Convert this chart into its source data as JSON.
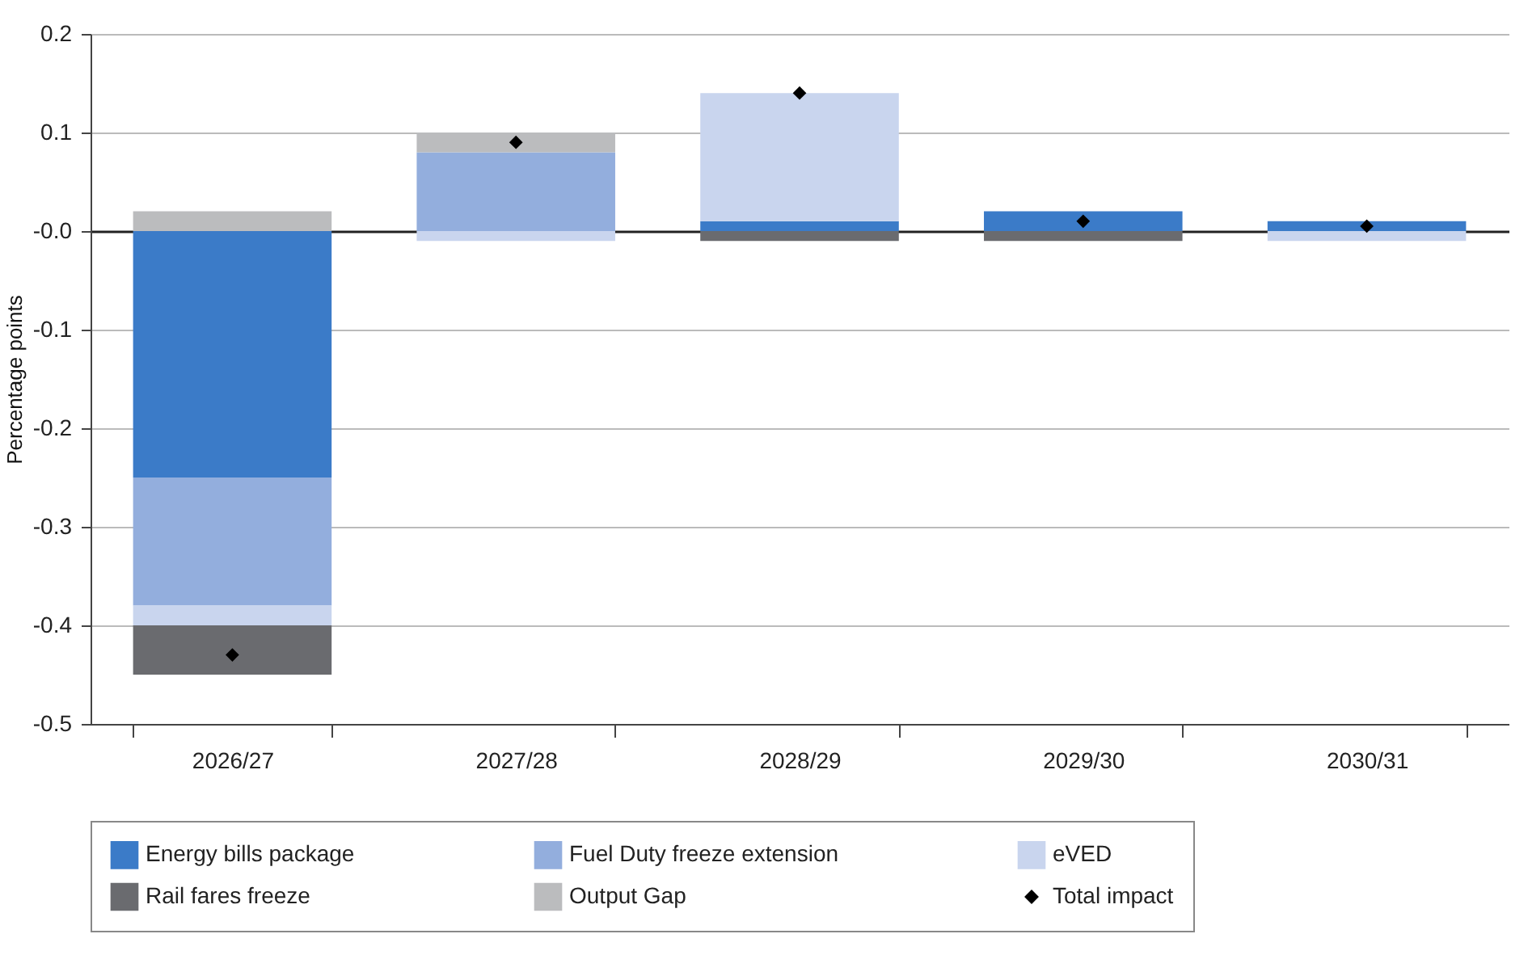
{
  "chart_data": {
    "type": "bar",
    "ylabel": "Percentage points",
    "stacked": true,
    "categories": [
      "2026/27",
      "2027/28",
      "2028/29",
      "2029/30",
      "2030/31"
    ],
    "series": [
      {
        "name": "Energy bills package",
        "color": "#3b7bc8",
        "values": [
          -0.25,
          0,
          0.01,
          0.02,
          0.01
        ]
      },
      {
        "name": "Fuel Duty freeze extension",
        "color": "#93aedd",
        "values": [
          -0.13,
          0.08,
          0,
          0,
          0
        ]
      },
      {
        "name": "eVED",
        "color": "#c9d5ee",
        "values": [
          -0.02,
          -0.01,
          0.13,
          0,
          -0.01
        ]
      },
      {
        "name": "Rail fares freeze",
        "color": "#6a6b6f",
        "values": [
          -0.05,
          0,
          -0.01,
          -0.01,
          0
        ]
      },
      {
        "name": "Output Gap",
        "color": "#bbbcbe",
        "values": [
          0.02,
          0.02,
          0,
          0,
          0
        ]
      },
      {
        "name": "Total impact",
        "type": "scatter",
        "color": "#000000",
        "x": [
          "2026/27",
          "2027/28",
          "2028/29",
          "2029/30",
          "2030/31"
        ],
        "values": [
          -0.43,
          0.09,
          0.14,
          0.01,
          0.005
        ]
      }
    ],
    "ylim": [
      -0.5,
      0.2
    ],
    "yticks": [
      {
        "value": -0.5,
        "label": "-0.5"
      },
      {
        "value": -0.4,
        "label": "-0.4"
      },
      {
        "value": -0.3,
        "label": "-0.3"
      },
      {
        "value": -0.2,
        "label": "-0.2"
      },
      {
        "value": -0.1,
        "label": "-0.1"
      },
      {
        "value": 0,
        "label": "-0.0"
      },
      {
        "value": 0.1,
        "label": "0.1"
      },
      {
        "value": 0.2,
        "label": "0.2"
      }
    ],
    "grid": "y",
    "legend": "bottom",
    "marker": "diamond"
  }
}
